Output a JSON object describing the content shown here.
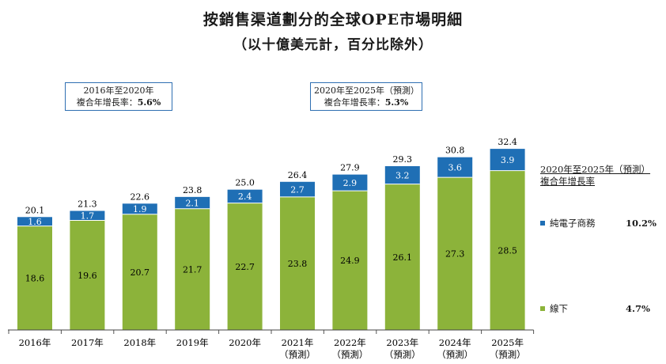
{
  "chart_data": {
    "type": "bar",
    "stacked": true,
    "title": "按銷售渠道劃分的全球OPE市場明細",
    "subtitle": "（以十億美元計，百分比除外）",
    "categories": [
      "2016年",
      "2017年",
      "2018年",
      "2019年",
      "2020年",
      "2021年",
      "2022年",
      "2023年",
      "2024年",
      "2025年"
    ],
    "category_notes": [
      "",
      "",
      "",
      "",
      "",
      "（預測）",
      "（預測）",
      "（預測）",
      "（預測）",
      "（預測）"
    ],
    "series": [
      {
        "name": "線下",
        "color": "#8cb33a",
        "values": [
          18.6,
          19.6,
          20.7,
          21.7,
          22.7,
          23.8,
          24.9,
          26.1,
          27.3,
          28.5
        ]
      },
      {
        "name": "純電子商務",
        "color": "#1f6fb5",
        "values": [
          1.6,
          1.7,
          1.9,
          2.1,
          2.4,
          2.7,
          2.9,
          3.2,
          3.6,
          3.9
        ]
      }
    ],
    "totals": [
      "20.1",
      "21.3",
      "22.6",
      "23.8",
      "25.0",
      "26.4",
      "27.9",
      "29.3",
      "30.8",
      "32.4"
    ],
    "ylim": [
      0,
      35
    ],
    "grid": false,
    "cagr_boxes": [
      {
        "period": "2016年至2020年",
        "label": "複合年增長率：",
        "value": "5.6%"
      },
      {
        "period": "2020年至2025年（預測）",
        "label": "複合年增長率：",
        "value": "5.3%"
      }
    ],
    "legend": {
      "title_line1": "2020年至2025年（預測）",
      "title_line2": "複合年增長率",
      "placement": "right",
      "items": [
        {
          "label": "純電子商務",
          "cagr": "10.2%",
          "color": "#1f6fb5"
        },
        {
          "label": "線下",
          "cagr": "4.7%",
          "color": "#8cb33a"
        }
      ]
    }
  }
}
